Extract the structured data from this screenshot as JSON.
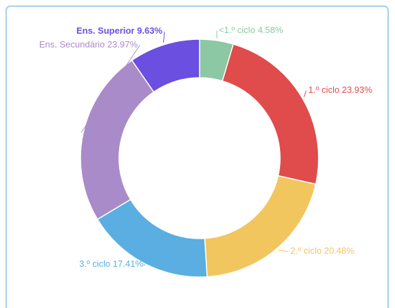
{
  "chart_data": {
    "type": "donut",
    "categories": [
      "<1.º ciclo",
      "1.º ciclo",
      "2.º ciclo",
      "3.º ciclo",
      "Ens. Secundário",
      "Ens. Superior"
    ],
    "values": [
      4.58,
      23.93,
      20.48,
      17.41,
      23.97,
      9.63
    ],
    "value_labels": [
      "4.58%",
      "23.93%",
      "20.48%",
      "17.41%",
      "23.97%",
      "9.63%"
    ],
    "colors": [
      "#8cc8a4",
      "#e04b4b",
      "#f2c65e",
      "#5aaee2",
      "#a98bc9",
      "#6a4fe0"
    ]
  }
}
